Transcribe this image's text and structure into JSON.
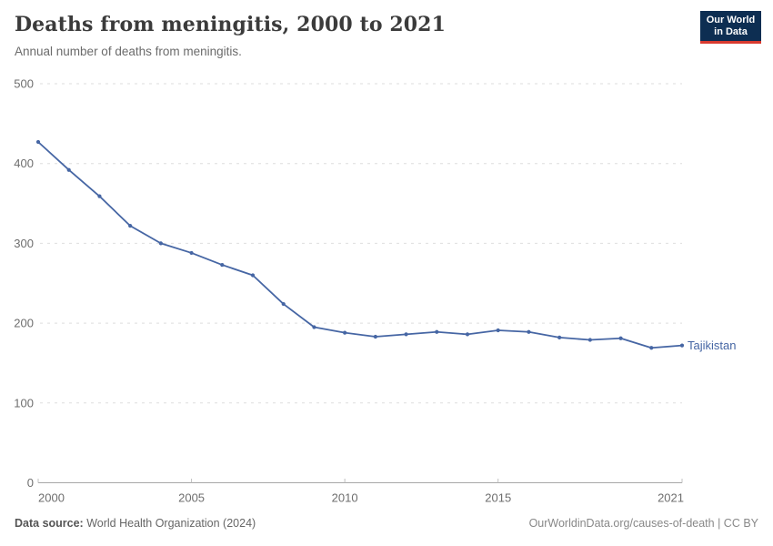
{
  "header": {
    "title": "Deaths from meningitis, 2000 to 2021",
    "subtitle": "Annual number of deaths from meningitis.",
    "logo": {
      "line1": "Our World",
      "line2": "in Data",
      "bg_color": "#0d2e52",
      "accent_color": "#d93a2f"
    }
  },
  "chart_data": {
    "type": "line",
    "title": "Deaths from meningitis, 2000 to 2021",
    "xlabel": "",
    "ylabel": "",
    "xlim": [
      2000,
      2021
    ],
    "ylim": [
      0,
      500
    ],
    "x_ticks": [
      2000,
      2005,
      2010,
      2015,
      2021
    ],
    "y_ticks": [
      0,
      100,
      200,
      300,
      400,
      500
    ],
    "grid": "horizontal-dashed",
    "legend_position": "end-of-line-label",
    "series": [
      {
        "name": "Tajikistan",
        "color": "#4666a4",
        "x": [
          2000,
          2001,
          2002,
          2003,
          2004,
          2005,
          2006,
          2007,
          2008,
          2009,
          2010,
          2011,
          2012,
          2013,
          2014,
          2015,
          2016,
          2017,
          2018,
          2019,
          2020,
          2021
        ],
        "values": [
          427,
          392,
          359,
          322,
          300,
          288,
          273,
          260,
          224,
          195,
          188,
          183,
          186,
          189,
          186,
          191,
          189,
          182,
          179,
          181,
          169,
          172
        ]
      }
    ]
  },
  "footer": {
    "source_label": "Data source:",
    "source_value": " World Health Organization (2024)",
    "credit": "OurWorldinData.org/causes-of-death | CC BY"
  }
}
